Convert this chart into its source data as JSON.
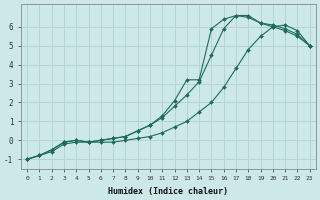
{
  "xlabel": "Humidex (Indice chaleur)",
  "background_color": "#cde8e8",
  "grid_color": "#b0d0d0",
  "line_color": "#1e6b5e",
  "ylim": [
    -1.5,
    7.2
  ],
  "xlim": [
    -0.5,
    23.5
  ],
  "yticks": [
    -1,
    0,
    1,
    2,
    3,
    4,
    5,
    6
  ],
  "xticks": [
    0,
    1,
    2,
    3,
    4,
    5,
    6,
    7,
    8,
    9,
    10,
    11,
    12,
    13,
    14,
    15,
    16,
    17,
    18,
    19,
    20,
    21,
    22,
    23
  ],
  "line1_x": [
    0,
    1,
    2,
    3,
    4,
    5,
    6,
    7,
    8,
    9,
    10,
    11,
    12,
    13,
    14,
    15,
    16,
    17,
    18,
    19,
    20,
    21,
    22,
    23
  ],
  "line1_y": [
    -1.0,
    -0.8,
    -0.6,
    -0.2,
    -0.1,
    -0.1,
    -0.1,
    -0.1,
    0.0,
    0.1,
    0.2,
    0.4,
    0.7,
    1.0,
    1.5,
    2.0,
    2.8,
    3.8,
    4.8,
    5.5,
    6.0,
    6.1,
    5.8,
    5.0
  ],
  "line2_x": [
    0,
    1,
    2,
    3,
    4,
    5,
    6,
    7,
    8,
    9,
    10,
    11,
    12,
    13,
    14,
    15,
    16,
    17,
    18,
    19,
    20,
    21,
    22,
    23
  ],
  "line2_y": [
    -1.0,
    -0.8,
    -0.5,
    -0.1,
    0.0,
    -0.1,
    0.0,
    0.1,
    0.2,
    0.5,
    0.8,
    1.2,
    1.8,
    2.4,
    3.1,
    4.5,
    5.9,
    6.6,
    6.6,
    6.2,
    6.1,
    5.9,
    5.6,
    5.0
  ],
  "line3_x": [
    0,
    1,
    2,
    3,
    4,
    5,
    6,
    7,
    8,
    9,
    10,
    11,
    12,
    13,
    14,
    15,
    16,
    17,
    18,
    19,
    20,
    21,
    22,
    23
  ],
  "line3_y": [
    -1.0,
    -0.8,
    -0.5,
    -0.1,
    0.0,
    -0.1,
    0.0,
    0.1,
    0.2,
    0.5,
    0.8,
    1.3,
    2.1,
    3.2,
    3.2,
    5.9,
    6.4,
    6.6,
    6.5,
    6.2,
    6.0,
    5.8,
    5.5,
    5.0
  ]
}
